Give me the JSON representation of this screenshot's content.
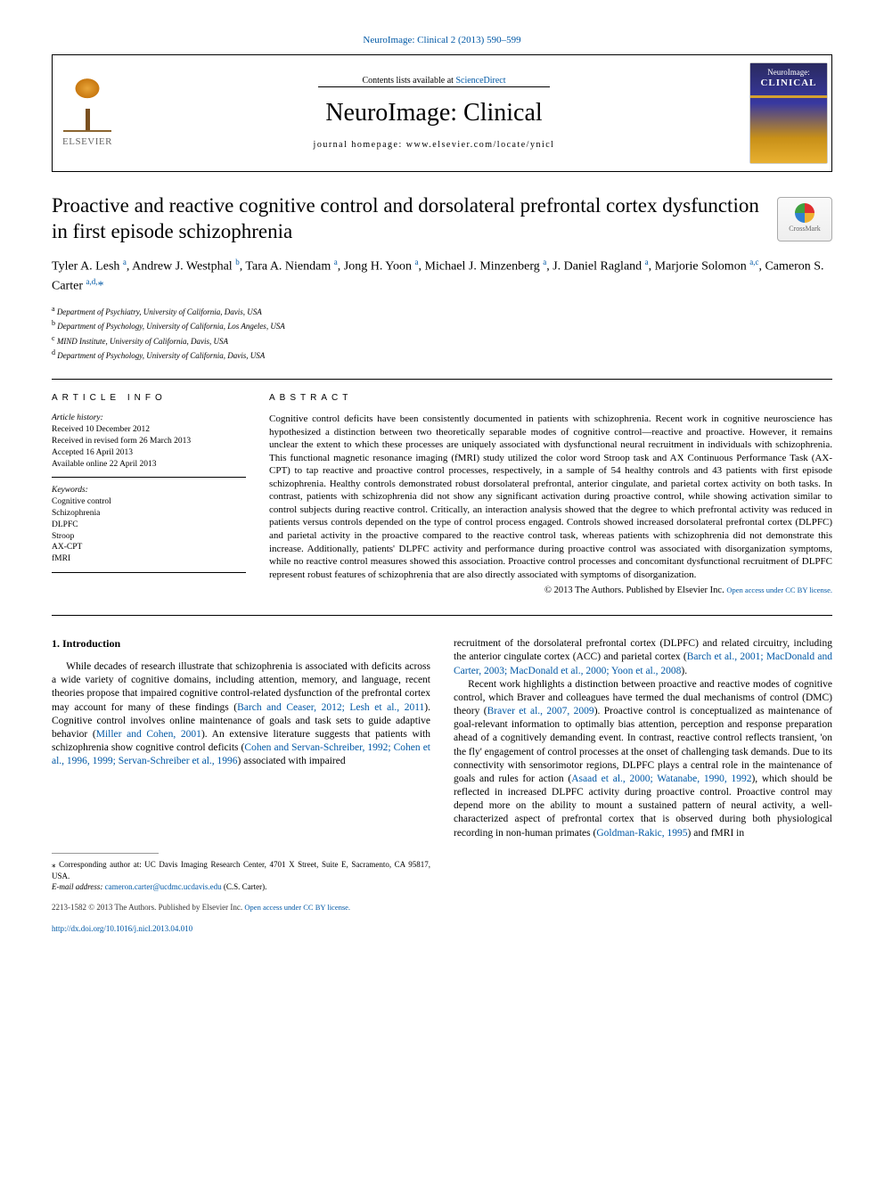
{
  "top_link": "NeuroImage: Clinical 2 (2013) 590–599",
  "header": {
    "publisher_name": "ELSEVIER",
    "avail_prefix": "Contents lists available at ",
    "avail_link": "ScienceDirect",
    "journal": "NeuroImage: Clinical",
    "homepage_label": "journal homepage: ",
    "homepage_url": "www.elsevier.com/locate/ynicl",
    "cover_line1": "NeuroImage:",
    "cover_line2": "CLINICAL"
  },
  "crossmark_label": "CrossMark",
  "title": "Proactive and reactive cognitive control and dorsolateral prefrontal cortex dysfunction in first episode schizophrenia",
  "authors_html": "Tyler A. Lesh <sup>a</sup>, Andrew J. Westphal <sup>b</sup>, Tara A. Niendam <sup>a</sup>, Jong H. Yoon <sup>a</sup>, Michael J. Minzenberg <sup>a</sup>, J. Daniel Ragland <sup>a</sup>, Marjorie Solomon <sup>a,c</sup>, Cameron S. Carter <sup>a,d,</sup><span class='star'>*</span>",
  "affiliations": [
    {
      "sup": "a",
      "text": "Department of Psychiatry, University of California, Davis, USA"
    },
    {
      "sup": "b",
      "text": "Department of Psychology, University of California, Los Angeles, USA"
    },
    {
      "sup": "c",
      "text": "MIND Institute, University of California, Davis, USA"
    },
    {
      "sup": "d",
      "text": "Department of Psychology, University of California, Davis, USA"
    }
  ],
  "article_info": {
    "heading": "article info",
    "history_label": "Article history:",
    "history": [
      "Received 10 December 2012",
      "Received in revised form 26 March 2013",
      "Accepted 16 April 2013",
      "Available online 22 April 2013"
    ],
    "keywords_label": "Keywords:",
    "keywords": [
      "Cognitive control",
      "Schizophrenia",
      "DLPFC",
      "Stroop",
      "AX-CPT",
      "fMRI"
    ]
  },
  "abstract": {
    "heading": "abstract",
    "text": "Cognitive control deficits have been consistently documented in patients with schizophrenia. Recent work in cognitive neuroscience has hypothesized a distinction between two theoretically separable modes of cognitive control—reactive and proactive. However, it remains unclear the extent to which these processes are uniquely associated with dysfunctional neural recruitment in individuals with schizophrenia. This functional magnetic resonance imaging (fMRI) study utilized the color word Stroop task and AX Continuous Performance Task (AX-CPT) to tap reactive and proactive control processes, respectively, in a sample of 54 healthy controls and 43 patients with first episode schizophrenia. Healthy controls demonstrated robust dorsolateral prefrontal, anterior cingulate, and parietal cortex activity on both tasks. In contrast, patients with schizophrenia did not show any significant activation during proactive control, while showing activation similar to control subjects during reactive control. Critically, an interaction analysis showed that the degree to which prefrontal activity was reduced in patients versus controls depended on the type of control process engaged. Controls showed increased dorsolateral prefrontal cortex (DLPFC) and parietal activity in the proactive compared to the reactive control task, whereas patients with schizophrenia did not demonstrate this increase. Additionally, patients' DLPFC activity and performance during proactive control was associated with disorganization symptoms, while no reactive control measures showed this association. Proactive control processes and concomitant dysfunctional recruitment of DLPFC represent robust features of schizophrenia that are also directly associated with symptoms of disorganization.",
    "copyright": "© 2013 The Authors. Published by Elsevier Inc.",
    "open_access": "Open access under CC BY license."
  },
  "intro": {
    "heading": "1. Introduction",
    "p1a": "While decades of research illustrate that schizophrenia is associated with deficits across a wide variety of cognitive domains, including attention, memory, and language, recent theories propose that impaired cognitive control-related dysfunction of the prefrontal cortex may account for many of these findings (",
    "p1_ref1": "Barch and Ceaser, 2012; Lesh et al., 2011",
    "p1b": "). Cognitive control involves online maintenance of goals and task sets to guide adaptive behavior (",
    "p1_ref2": "Miller and Cohen, 2001",
    "p1c": "). An extensive literature suggests that patients with schizophrenia show cognitive control deficits (",
    "p1_ref3": "Cohen and Servan-Schreiber, 1992; Cohen et al., 1996, 1999; Servan-Schreiber et al., 1996",
    "p1d": ") associated with impaired",
    "p2a": "recruitment of the dorsolateral prefrontal cortex (DLPFC) and related circuitry, including the anterior cingulate cortex (ACC) and parietal cortex (",
    "p2_ref1": "Barch et al., 2001; MacDonald and Carter, 2003; MacDonald et al., 2000; Yoon et al., 2008",
    "p2b": ").",
    "p3a": "Recent work highlights a distinction between proactive and reactive modes of cognitive control, which Braver and colleagues have termed the dual mechanisms of control (DMC) theory (",
    "p3_ref1": "Braver et al., 2007, 2009",
    "p3b": "). Proactive control is conceptualized as maintenance of goal-relevant information to optimally bias attention, perception and response preparation ahead of a cognitively demanding event. In contrast, reactive control reflects transient, 'on the fly' engagement of control processes at the onset of challenging task demands. Due to its connectivity with sensorimotor regions, DLPFC plays a central role in the maintenance of goals and rules for action (",
    "p3_ref2": "Asaad et al., 2000; Watanabe, 1990, 1992",
    "p3c": "), which should be reflected in increased DLPFC activity during proactive control. Proactive control may depend more on the ability to mount a sustained pattern of neural activity, a well-characterized aspect of prefrontal cortex that is observed during both physiological recording in non-human primates (",
    "p3_ref3": "Goldman-Rakic, 1995",
    "p3d": ") and fMRI in"
  },
  "footnote": {
    "corr": "⁎ Corresponding author at: UC Davis Imaging Research Center, 4701 X Street, Suite E, Sacramento, CA 95817, USA.",
    "email_label": "E-mail address: ",
    "email": "cameron.carter@ucdmc.ucdavis.edu",
    "email_suffix": " (C.S. Carter)."
  },
  "bottom": {
    "issn_line": "2213-1582 © 2013 The Authors. Published by Elsevier Inc.",
    "oa": "Open access under CC BY license.",
    "doi": "http://dx.doi.org/10.1016/j.nicl.2013.04.010"
  },
  "colors": {
    "link": "#0058a5",
    "text": "#000000",
    "border": "#000000"
  }
}
